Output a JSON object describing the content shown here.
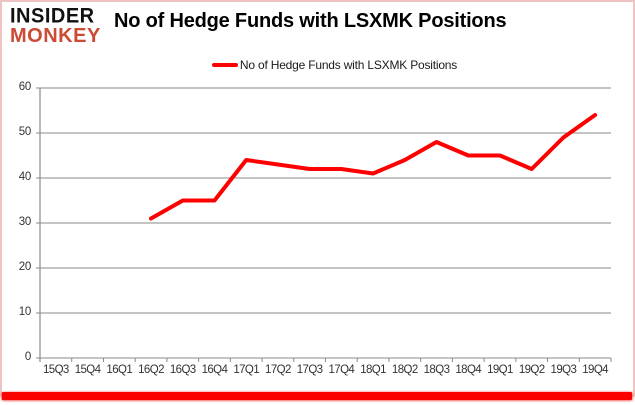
{
  "logo": {
    "line1": "INSIDER",
    "line2": "MONKEY",
    "line2_color": "#cd4a33"
  },
  "title": "No of Hedge Funds with LSXMK Positions",
  "legend": {
    "label": "No of Hedge Funds with LSXMK Positions",
    "marker_color": "#ff0000"
  },
  "colors": {
    "line": "#ff0000",
    "gridline": "#898989",
    "axis_text": "#333333",
    "frame_border": "#eec3c3",
    "bottom_bar": "#fb0202",
    "background": "#ffffff"
  },
  "chart_data": {
    "type": "line",
    "title": "No of Hedge Funds with LSXMK Positions",
    "categories": [
      "15Q3",
      "15Q4",
      "16Q1",
      "16Q2",
      "16Q3",
      "16Q4",
      "17Q1",
      "17Q2",
      "17Q3",
      "17Q4",
      "18Q1",
      "18Q2",
      "18Q3",
      "18Q4",
      "19Q1",
      "19Q2",
      "19Q3",
      "19Q4"
    ],
    "series": [
      {
        "name": "No of Hedge Funds with LSXMK Positions",
        "color": "#ff0000",
        "values": [
          null,
          null,
          null,
          31,
          35,
          35,
          44,
          43,
          42,
          42,
          41,
          44,
          48,
          45,
          45,
          42,
          49,
          54
        ]
      }
    ],
    "xlabel": "",
    "ylabel": "",
    "ylim": [
      0,
      60
    ],
    "ytick_step": 10,
    "grid": true,
    "legend_position": "top"
  }
}
